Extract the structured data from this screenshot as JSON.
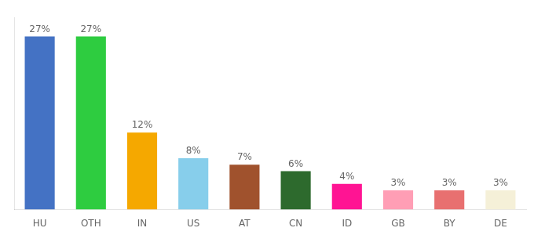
{
  "chart_data": {
    "type": "bar",
    "categories": [
      "HU",
      "OTH",
      "IN",
      "US",
      "AT",
      "CN",
      "ID",
      "GB",
      "BY",
      "DE"
    ],
    "values": [
      27,
      27,
      12,
      8,
      7,
      6,
      4,
      3,
      3,
      3
    ],
    "value_labels": [
      "27%",
      "27%",
      "12%",
      "8%",
      "7%",
      "6%",
      "4%",
      "3%",
      "3%",
      "3%"
    ],
    "colors": [
      "#4472c4",
      "#2ecc40",
      "#f5a800",
      "#87ceeb",
      "#a0522d",
      "#2d6a2d",
      "#ff1493",
      "#ff9eb5",
      "#e87070",
      "#f5f0d8"
    ],
    "ylim": [
      0,
      30
    ],
    "grid": false,
    "data_labels": true,
    "tick_labels": "x"
  }
}
